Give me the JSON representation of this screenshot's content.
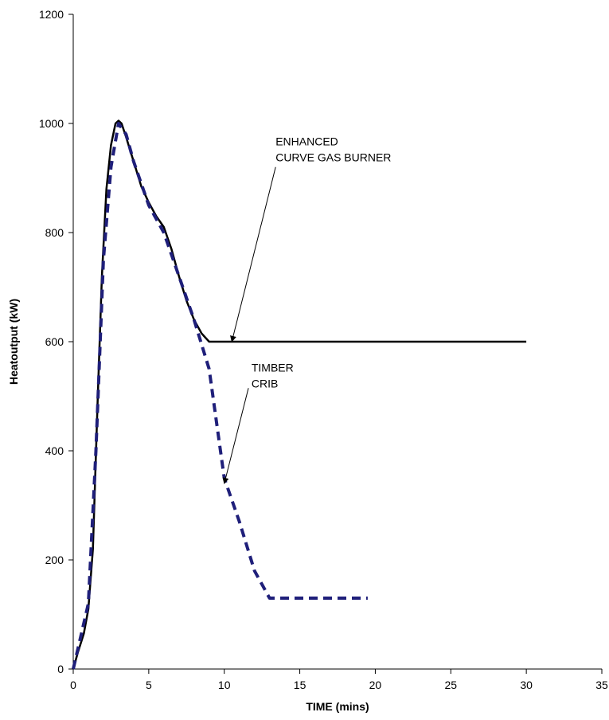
{
  "chart_data": {
    "type": "line",
    "title": "",
    "xlabel": "TIME (mins)",
    "ylabel": "Heatoutput (kW)",
    "xlim": [
      0,
      35
    ],
    "ylim": [
      0,
      1200
    ],
    "xticks": [
      0,
      5,
      10,
      15,
      20,
      25,
      30,
      35
    ],
    "yticks": [
      0,
      200,
      400,
      600,
      800,
      1000,
      1200
    ],
    "grid": false,
    "legend": "none",
    "series": [
      {
        "style": "solid",
        "color": "#000000",
        "x": [
          0,
          0.3,
          0.7,
          1.0,
          1.3,
          1.6,
          1.9,
          2.2,
          2.5,
          2.8,
          3.0,
          3.2,
          3.5,
          4.0,
          4.5,
          5.0,
          5.5,
          6.0,
          6.5,
          7.0,
          7.5,
          8.0,
          8.5,
          9.0,
          10.0,
          30.0
        ],
        "y": [
          0,
          30,
          65,
          110,
          220,
          480,
          720,
          880,
          960,
          1000,
          1005,
          1000,
          975,
          930,
          885,
          855,
          830,
          810,
          770,
          720,
          675,
          640,
          615,
          600,
          600,
          600
        ]
      },
      {
        "style": "dashed",
        "color": "#1f1f7a",
        "x": [
          0,
          0.5,
          1.0,
          1.5,
          2.0,
          2.5,
          3.0,
          3.5,
          4.0,
          5.0,
          6.0,
          7.0,
          8.0,
          9.0,
          10.0,
          11.0,
          12.0,
          13.0,
          19.5
        ],
        "y": [
          0,
          60,
          120,
          400,
          750,
          920,
          1000,
          980,
          930,
          850,
          800,
          720,
          640,
          550,
          350,
          270,
          180,
          130,
          130
        ]
      }
    ],
    "annotations": [
      {
        "id": "burner",
        "lines": [
          "ENHANCED",
          "CURVE GAS BURNER"
        ],
        "target": [
          10.5,
          600
        ],
        "text_at": [
          13.4,
          960
        ]
      },
      {
        "id": "crib",
        "lines": [
          "TIMBER",
          "CRIB"
        ],
        "target": [
          10.0,
          340
        ],
        "text_at": [
          11.8,
          545
        ]
      }
    ]
  }
}
